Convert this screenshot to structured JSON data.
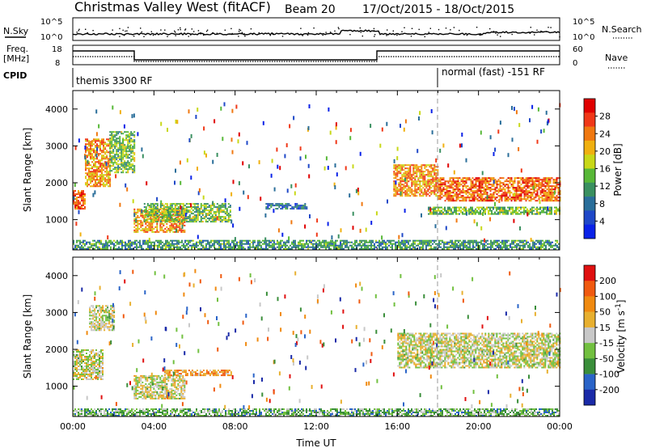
{
  "header": {
    "site": "Christmas Valley West (fitACF)",
    "beam": "Beam 20",
    "dates": "17/Oct/2015 - 18/Oct/2015"
  },
  "top_panels": {
    "nsky_label": "N.Sky",
    "nsearch_label": "N.Search",
    "nsky_ticks": [
      "10^5",
      "10^0"
    ],
    "nsearch_ticks": [
      "10^5",
      "10^0"
    ],
    "freq_label_1": "Freq.",
    "freq_label_2": "[MHz]",
    "freq_ticks": [
      "18",
      "8"
    ],
    "nave_label": "Nave",
    "nave_ticks": [
      "60",
      "0"
    ],
    "cpid_label": "CPID",
    "cpid_left": "themis 3300 RF",
    "cpid_right": "normal (fast) -151 RF"
  },
  "chart_data": [
    {
      "type": "heatmap",
      "name": "power",
      "ylabel": "Slant Range [km]",
      "xlabel": "Time UT",
      "ylim": [
        180,
        4500
      ],
      "y_ticks": [
        "4000",
        "3000",
        "2000",
        "1000"
      ],
      "x_ticks": [
        "00:00",
        "04:00",
        "08:00",
        "12:00",
        "16:00",
        "20:00",
        "00:00"
      ],
      "colorbar_label": "Power [dB]",
      "colorbar_ticks": [
        "28",
        "24",
        "20",
        "16",
        "12",
        "8",
        "4"
      ],
      "colors": [
        "#0a22e8",
        "#1f48c8",
        "#2a6e9a",
        "#3a9060",
        "#58b838",
        "#c8d818",
        "#f0b010",
        "#f07810",
        "#f03818",
        "#e00000"
      ],
      "regions": [
        {
          "t0": 0.0,
          "t1": 0.6,
          "r0": 1300,
          "r1": 1800,
          "level": 0.82
        },
        {
          "t0": 0.6,
          "t1": 1.8,
          "r0": 1900,
          "r1": 3200,
          "level": 0.7
        },
        {
          "t0": 1.8,
          "t1": 3.0,
          "r0": 2300,
          "r1": 3400,
          "level": 0.45
        },
        {
          "t0": 3.0,
          "t1": 5.5,
          "r0": 650,
          "r1": 1300,
          "level": 0.7
        },
        {
          "t0": 3.5,
          "t1": 7.8,
          "r0": 950,
          "r1": 1450,
          "level": 0.45
        },
        {
          "t0": 9.5,
          "t1": 11.5,
          "r0": 1300,
          "r1": 1450,
          "level": 0.25
        },
        {
          "t0": 15.8,
          "t1": 18.0,
          "r0": 1650,
          "r1": 2500,
          "level": 0.72
        },
        {
          "t0": 18.0,
          "t1": 24.0,
          "r0": 1500,
          "r1": 2150,
          "level": 0.78
        },
        {
          "t0": 17.5,
          "t1": 24.0,
          "r0": 1150,
          "r1": 1350,
          "level": 0.45
        },
        {
          "t0": 0.0,
          "t1": 24.0,
          "r0": 200,
          "r1": 450,
          "level": 0.35
        }
      ]
    },
    {
      "type": "heatmap",
      "name": "velocity",
      "ylabel": "Slant Range [km]",
      "xlabel": "Time UT",
      "ylim": [
        180,
        4500
      ],
      "y_ticks": [
        "4000",
        "3000",
        "2000",
        "1000"
      ],
      "x_ticks": [
        "00:00",
        "04:00",
        "08:00",
        "12:00",
        "16:00",
        "20:00",
        "00:00"
      ],
      "colorbar_label": "Velocity [m s^-1]",
      "colorbar_ticks": [
        "200",
        "100",
        "50",
        "15",
        "-15",
        "-50",
        "-100",
        "-200"
      ],
      "colors": [
        "#1a2aa8",
        "#2a64c8",
        "#3a8e3a",
        "#72c040",
        "#c8c8c8",
        "#e8b030",
        "#f08a10",
        "#f05a10",
        "#e01010"
      ],
      "regions": [
        {
          "t0": 0.0,
          "t1": 1.5,
          "r0": 1200,
          "r1": 2000,
          "level": 0.5
        },
        {
          "t0": 0.8,
          "t1": 2.0,
          "r0": 2500,
          "r1": 3200,
          "level": 0.5
        },
        {
          "t0": 3.0,
          "t1": 5.5,
          "r0": 650,
          "r1": 1300,
          "level": 0.5
        },
        {
          "t0": 4.5,
          "t1": 7.8,
          "r0": 1300,
          "r1": 1450,
          "level": 0.7
        },
        {
          "t0": 16.0,
          "t1": 24.0,
          "r0": 1500,
          "r1": 2450,
          "level": 0.5
        },
        {
          "t0": 0.0,
          "t1": 24.0,
          "r0": 200,
          "r1": 400,
          "level": 0.35
        }
      ]
    }
  ]
}
